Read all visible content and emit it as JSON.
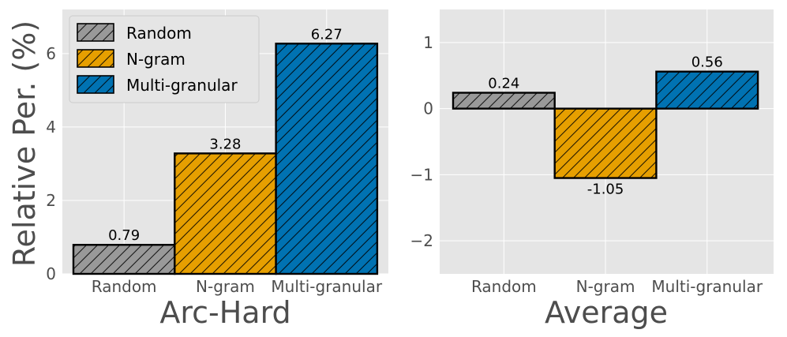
{
  "chart_data": [
    {
      "type": "bar",
      "panel": "left",
      "categories": [
        "Random",
        "N-gram",
        "Multi-granular"
      ],
      "values": [
        0.79,
        3.28,
        6.27
      ],
      "value_labels": [
        "0.79",
        "3.28",
        "6.27"
      ],
      "title": "",
      "xlabel": "Arc-Hard",
      "ylabel": "Relative Per. (%)",
      "ylim": [
        0,
        7.2
      ],
      "yticks": [
        0,
        2,
        4,
        6
      ],
      "ytick_labels": [
        "0",
        "2",
        "4",
        "6"
      ],
      "grid": true,
      "legend": {
        "placement": "upper-left",
        "entries": [
          "Random",
          "N-gram",
          "Multi-granular"
        ]
      }
    },
    {
      "type": "bar",
      "panel": "right",
      "categories": [
        "Random",
        "N-gram",
        "Multi-granular"
      ],
      "values": [
        0.24,
        -1.05,
        0.56
      ],
      "value_labels": [
        "0.24",
        "-1.05",
        "0.56"
      ],
      "title": "",
      "xlabel": "Average",
      "ylabel": "",
      "ylim": [
        -2.5,
        1.5
      ],
      "yticks": [
        -2,
        -1,
        0,
        1
      ],
      "ytick_labels": [
        "−2",
        "−1",
        "0",
        "1"
      ],
      "grid": true
    }
  ],
  "colors": {
    "Random": "#999999",
    "N-gram": "#E69F00",
    "Multi-granular": "#0072B2",
    "background": "#E5E5E5",
    "grid": "#FFFFFF",
    "edge": "#000000"
  },
  "hatch": "diagonal-forward-slash"
}
